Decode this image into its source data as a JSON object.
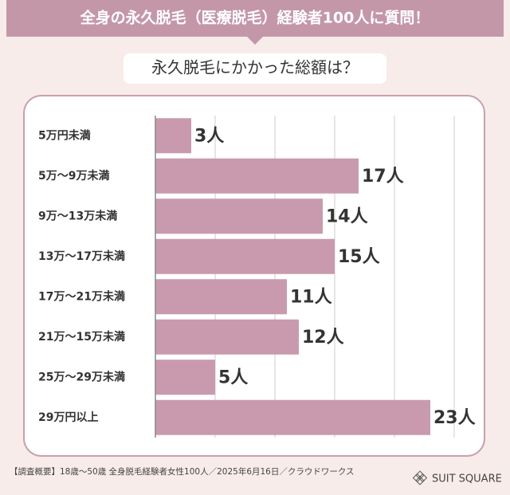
{
  "chart_data": {
    "type": "bar",
    "orientation": "horizontal",
    "title": "全身の永久脱毛（医療脱毛）経験者100人に質問！",
    "subtitle": "永久脱毛にかかった総額は？",
    "categories": [
      "5万円未満",
      "5万～9万未満",
      "9万～13万未満",
      "13万～17万未満",
      "17万～21万未満",
      "21万～15万未満",
      "25万～29万未満",
      "29万円以上"
    ],
    "values": [
      3,
      17,
      14,
      15,
      11,
      12,
      5,
      23
    ],
    "value_labels": [
      "3人",
      "17人",
      "14人",
      "15人",
      "11人",
      "12人",
      "5人",
      "23人"
    ],
    "color": "#c99aae",
    "xlim": [
      0,
      25
    ],
    "xticks": [
      0,
      5,
      10,
      15,
      20,
      25
    ],
    "grid": true,
    "note": "【調査概要】18歳～50歳 全身脱毛経験者女性100人／2025年6月16日／クラウドワークス",
    "brand": "SUIT SQUARE"
  }
}
